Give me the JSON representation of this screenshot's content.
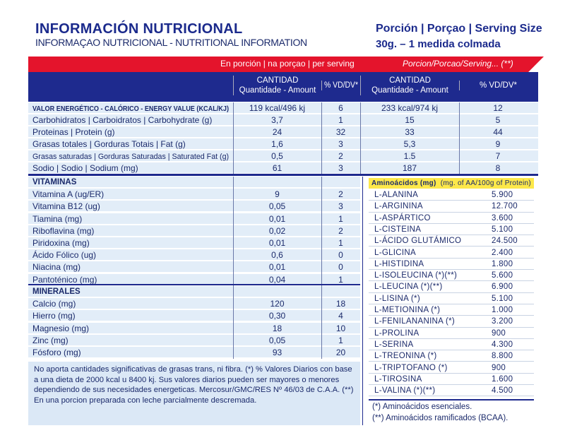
{
  "header": {
    "title": "INFORMACIÓN NUTRICIONAL",
    "subtitle": "INFORMAÇAO NUTRICIONAL - NUTRITIONAL INFORMATION",
    "serving_label": "Porción | Porçao | Serving Size",
    "serving_value": "30g. – 1 medida colmada"
  },
  "band": {
    "per_serving": "En porción | na porçao | per serving",
    "per_prepared": "Porcion/Porcao/Serving... (**)"
  },
  "columns": {
    "amount": "CANTIDAD",
    "amount_sub": "Quantidade - Amount",
    "dv": "% VD/DV*"
  },
  "colors": {
    "red": "#e4142c",
    "navy": "#1e2a8e",
    "light_blue": "#e2edf8",
    "yellow": "#fde84a"
  },
  "main_rows": [
    {
      "label": "VALOR ENERGÉTICO - CALÓRICO - ENERGY VALUE (KCAL/KJ)",
      "a1": "119 kcal/496 kj",
      "d1": "6",
      "a2": "233 kcal/974 kj",
      "d2": "12"
    },
    {
      "label": "Carbohidratos | Carboidratos | Carbohydrate (g)",
      "a1": "3,7",
      "d1": "1",
      "a2": "15",
      "d2": "5"
    },
    {
      "label": "Proteinas | Protein (g)",
      "a1": "24",
      "d1": "32",
      "a2": "33",
      "d2": "44"
    },
    {
      "label": "Grasas totales | Gorduras Totais | Fat (g)",
      "a1": "1,6",
      "d1": "3",
      "a2": "5,3",
      "d2": "9"
    },
    {
      "label": "Grasas saturadas | Gorduras Saturadas | Saturated Fat (g)",
      "a1": "0,5",
      "d1": "2",
      "a2": "1.5",
      "d2": "7"
    },
    {
      "label": "Sodio | Sodio | Sodium (mg)",
      "a1": "61",
      "d1": "3",
      "a2": "187",
      "d2": "8"
    }
  ],
  "vitamins": {
    "title": "VITAMINAS",
    "rows": [
      {
        "label": "Vitamina A (ug/ER)",
        "a": "9",
        "d": "2"
      },
      {
        "label": "Vitamina B12 (ug)",
        "a": "0,05",
        "d": "3"
      },
      {
        "label": "Tiamina (mg)",
        "a": "0,01",
        "d": "1"
      },
      {
        "label": "Riboflavina (mg)",
        "a": "0,02",
        "d": "2"
      },
      {
        "label": "Piridoxina (mg)",
        "a": "0,01",
        "d": "1"
      },
      {
        "label": "Ácido Fólico (ug)",
        "a": "0,6",
        "d": "0"
      },
      {
        "label": "Niacina (mg)",
        "a": "0,01",
        "d": "0"
      },
      {
        "label": "Pantoténico (mg)",
        "a": "0,04",
        "d": "1"
      }
    ]
  },
  "minerals": {
    "title": "MINERALES",
    "rows": [
      {
        "label": "Calcio (mg)",
        "a": "120",
        "d": "18"
      },
      {
        "label": "Hierro (mg)",
        "a": "0,30",
        "d": "4"
      },
      {
        "label": "Magnesio (mg)",
        "a": "18",
        "d": "10"
      },
      {
        "label": "Zinc (mg)",
        "a": "0,05",
        "d": "1"
      },
      {
        "label": "Fósforo (mg)",
        "a": "93",
        "d": "20"
      }
    ]
  },
  "footnote": "No aporta cantidades significativas de grasas trans, ni fibra. (*) % Valores Diarios con base a una dieta de 2000 kcal u 8400 kj. Sus valores diarios pueden ser mayores o menores dependiendo de sus necesidades energeticas. Mercosur/GMC/RES Nº 46/03 de C.A.A. (**) En una porcion preparada con leche parcialmente descremada.",
  "amino": {
    "title": "Aminoácidos (mg)",
    "unit": "(mg. of AA/100g of Protein)",
    "rows": [
      [
        "L-ALANINA",
        "5.900"
      ],
      [
        "L-ARGININA",
        "12.700"
      ],
      [
        "L-ASPÁRTICO",
        "3.600"
      ],
      [
        "L-CISTEINA",
        "5.100"
      ],
      [
        "L-ÁCIDO GLUTÁMICO",
        "24.500"
      ],
      [
        "L-GLICINA",
        "2.400"
      ],
      [
        "L-HISTIDINA",
        "1.800"
      ],
      [
        "L-ISOLEUCINA (*)(**)",
        "5.600"
      ],
      [
        "L-LEUCINA (*)(**)",
        "6.900"
      ],
      [
        "L-LISINA (*)",
        "5.100"
      ],
      [
        "L-METIONINA (*)",
        "1.000"
      ],
      [
        "L-FENILANANINA (*)",
        "3.200"
      ],
      [
        "L-PROLINA",
        "900"
      ],
      [
        "L-SERINA",
        "4.300"
      ],
      [
        "L-TREONINA (*)",
        "8.800"
      ],
      [
        "L-TRIPTOFANO (*)",
        "900"
      ],
      [
        "L-TIROSINA",
        "1.600"
      ],
      [
        "L-VALINA (*)(**)",
        "4.500"
      ]
    ],
    "note1": "(*) Aminoácidos esenciales.",
    "note2": "(**) Aminoácidos ramificados (BCAA)."
  }
}
